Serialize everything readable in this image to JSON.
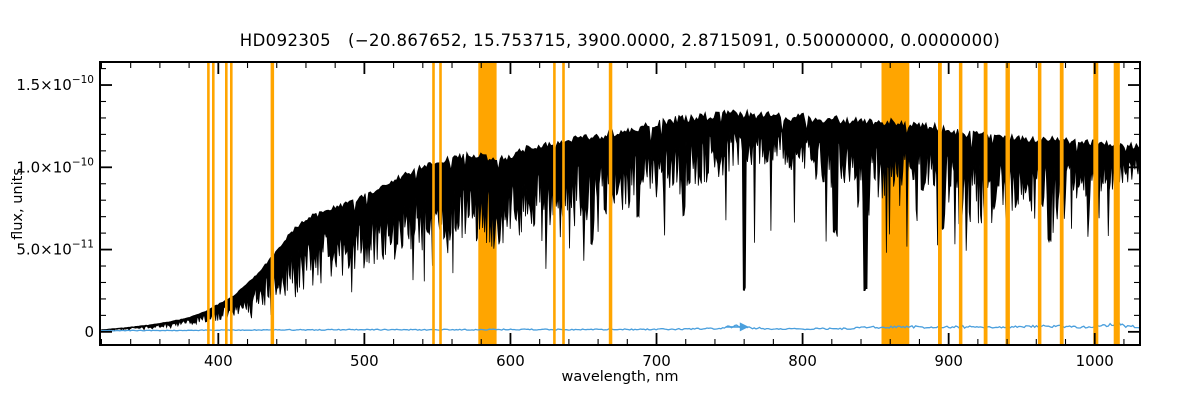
{
  "figure": {
    "window_background": "#FFFFFF"
  },
  "chart_data": {
    "type": "line",
    "title": "HD092305   (−20.867652, 15.753715, 3900.0000, 2.8715091, 0.50000000, 0.0000000)",
    "title_display": "HD092305   (−20.867652, 15.753715, 3900.0000, 2.8715091, 0.50000000, 0.0000000)",
    "object_name": "HD092305",
    "title_parameters": [
      -20.867652,
      15.753715,
      3900.0,
      2.8715091,
      0.5,
      0.0
    ],
    "xlabel": "wavelength, nm",
    "ylabel": "flux, units",
    "xlim": [
      319,
      1031
    ],
    "ylim_e11": [
      -0.8,
      16.4
    ],
    "flux_unit": 1e-11,
    "x_major_ticks": [
      400,
      500,
      600,
      700,
      800,
      900,
      1000
    ],
    "x_minor_step": 20,
    "y_major_ticks_e11": [
      0,
      5,
      10,
      15
    ],
    "y_minor_step_e11": 1,
    "y_tick_labels": [
      {
        "text": "0",
        "exp": ""
      },
      {
        "text": "5.0×10",
        "exp": "−11"
      },
      {
        "text": "1.0×10",
        "exp": "−10"
      },
      {
        "text": "1.5×10",
        "exp": "−10"
      }
    ],
    "grid": false,
    "legend": "none",
    "colors": {
      "spectrum": "#000000",
      "masked_band": "#FFA500",
      "error_curve": "#4A9FDD",
      "axes": "#000000",
      "background": "#FFFFFF"
    },
    "seed": 7,
    "series": [
      {
        "name": "stellar-spectrum",
        "color": "#000000",
        "continuum_e11": [
          [
            319,
            0.12
          ],
          [
            335,
            0.25
          ],
          [
            350,
            0.4
          ],
          [
            365,
            0.6
          ],
          [
            380,
            0.9
          ],
          [
            392,
            1.3
          ],
          [
            400,
            1.7
          ],
          [
            410,
            2.2
          ],
          [
            420,
            3.0
          ],
          [
            430,
            3.9
          ],
          [
            440,
            5.0
          ],
          [
            450,
            6.2
          ],
          [
            460,
            7.0
          ],
          [
            470,
            7.4
          ],
          [
            480,
            7.7
          ],
          [
            490,
            8.0
          ],
          [
            500,
            8.4
          ],
          [
            510,
            8.9
          ],
          [
            520,
            9.4
          ],
          [
            530,
            9.8
          ],
          [
            540,
            10.2
          ],
          [
            550,
            10.5
          ],
          [
            560,
            10.8
          ],
          [
            570,
            10.9
          ],
          [
            580,
            10.9
          ],
          [
            590,
            10.6
          ],
          [
            600,
            10.9
          ],
          [
            610,
            11.3
          ],
          [
            620,
            11.6
          ],
          [
            630,
            11.7
          ],
          [
            640,
            11.9
          ],
          [
            650,
            12.0
          ],
          [
            660,
            12.1
          ],
          [
            670,
            12.3
          ],
          [
            680,
            12.5
          ],
          [
            690,
            12.7
          ],
          [
            700,
            12.9
          ],
          [
            710,
            13.1
          ],
          [
            720,
            13.2
          ],
          [
            730,
            13.3
          ],
          [
            740,
            13.4
          ],
          [
            750,
            13.6
          ],
          [
            760,
            13.5
          ],
          [
            770,
            13.4
          ],
          [
            780,
            13.4
          ],
          [
            790,
            13.3
          ],
          [
            800,
            13.3
          ],
          [
            810,
            13.2
          ],
          [
            820,
            13.2
          ],
          [
            830,
            13.1
          ],
          [
            840,
            13.0
          ],
          [
            850,
            13.0
          ],
          [
            860,
            13.0
          ],
          [
            870,
            12.9
          ],
          [
            880,
            12.8
          ],
          [
            890,
            12.7
          ],
          [
            900,
            12.5
          ],
          [
            910,
            12.3
          ],
          [
            920,
            12.2
          ],
          [
            930,
            12.1
          ],
          [
            940,
            12.0
          ],
          [
            950,
            12.0
          ],
          [
            960,
            11.9
          ],
          [
            970,
            11.9
          ],
          [
            980,
            11.8
          ],
          [
            990,
            11.8
          ],
          [
            1000,
            11.7
          ],
          [
            1010,
            11.6
          ],
          [
            1020,
            11.5
          ],
          [
            1031,
            11.5
          ]
        ],
        "absorption_depth_fraction": [
          [
            319,
            0.45
          ],
          [
            350,
            0.5
          ],
          [
            380,
            0.55
          ],
          [
            400,
            0.6
          ],
          [
            420,
            0.62
          ],
          [
            440,
            0.62
          ],
          [
            460,
            0.62
          ],
          [
            480,
            0.58
          ],
          [
            500,
            0.55
          ],
          [
            520,
            0.55
          ],
          [
            540,
            0.52
          ],
          [
            560,
            0.5
          ],
          [
            580,
            0.52
          ],
          [
            595,
            0.56
          ],
          [
            610,
            0.5
          ],
          [
            630,
            0.47
          ],
          [
            650,
            0.46
          ],
          [
            670,
            0.44
          ],
          [
            690,
            0.4
          ],
          [
            710,
            0.36
          ],
          [
            730,
            0.33
          ],
          [
            750,
            0.3
          ],
          [
            770,
            0.24
          ],
          [
            790,
            0.26
          ],
          [
            810,
            0.32
          ],
          [
            830,
            0.4
          ],
          [
            845,
            0.46
          ],
          [
            860,
            0.36
          ],
          [
            875,
            0.3
          ],
          [
            890,
            0.36
          ],
          [
            905,
            0.42
          ],
          [
            920,
            0.46
          ],
          [
            935,
            0.46
          ],
          [
            950,
            0.4
          ],
          [
            965,
            0.45
          ],
          [
            980,
            0.42
          ],
          [
            995,
            0.32
          ],
          [
            1010,
            0.26
          ],
          [
            1031,
            0.2
          ]
        ],
        "deep_lines_e11": [
          {
            "x": 656,
            "bottom": 5.5
          },
          {
            "x": 687,
            "bottom": 7.2
          },
          {
            "x": 719,
            "bottom": 7.4
          },
          {
            "x": 760,
            "bottom": 2.6
          },
          {
            "x": 822,
            "bottom": 6.2
          },
          {
            "x": 843,
            "bottom": 2.6
          },
          {
            "x": 896,
            "bottom": 6.2
          },
          {
            "x": 940,
            "bottom": 6.4
          },
          {
            "x": 969,
            "bottom": 5.6
          }
        ]
      },
      {
        "name": "error-spectrum",
        "color": "#4A9FDD",
        "points_e11": [
          [
            319,
            0.07
          ],
          [
            360,
            0.08
          ],
          [
            400,
            0.1
          ],
          [
            450,
            0.12
          ],
          [
            500,
            0.13
          ],
          [
            550,
            0.13
          ],
          [
            600,
            0.14
          ],
          [
            650,
            0.14
          ],
          [
            700,
            0.15
          ],
          [
            740,
            0.2
          ],
          [
            755,
            0.35
          ],
          [
            765,
            0.25
          ],
          [
            780,
            0.18
          ],
          [
            800,
            0.18
          ],
          [
            830,
            0.2
          ],
          [
            850,
            0.28
          ],
          [
            870,
            0.3
          ],
          [
            890,
            0.28
          ],
          [
            910,
            0.3
          ],
          [
            930,
            0.26
          ],
          [
            950,
            0.3
          ],
          [
            970,
            0.34
          ],
          [
            990,
            0.3
          ],
          [
            1005,
            0.35
          ],
          [
            1015,
            0.5
          ],
          [
            1022,
            0.35
          ],
          [
            1031,
            0.3
          ]
        ],
        "arrow_marker": {
          "x_nm": 757,
          "y_e11": 0.3,
          "direction": "right"
        }
      }
    ],
    "masked_bands_nm": [
      {
        "center": 393.2,
        "width": 1.8,
        "layer": "front"
      },
      {
        "center": 396.6,
        "width": 1.8,
        "layer": "front"
      },
      {
        "center": 405.5,
        "width": 1.8,
        "layer": "front"
      },
      {
        "center": 408.9,
        "width": 1.8,
        "layer": "front"
      },
      {
        "center": 437.0,
        "width": 2.4,
        "layer": "front"
      },
      {
        "center": 547.3,
        "width": 1.8,
        "layer": "front"
      },
      {
        "center": 552.1,
        "width": 1.8,
        "layer": "front"
      },
      {
        "x0": 578,
        "x1": 590.5,
        "layer": "behind"
      },
      {
        "center": 630.1,
        "width": 1.8,
        "layer": "front"
      },
      {
        "center": 636.3,
        "width": 1.8,
        "layer": "front"
      },
      {
        "center": 668.5,
        "width": 2.4,
        "layer": "front"
      },
      {
        "x0": 854,
        "x1": 873,
        "layer": "behind"
      },
      {
        "center": 894.0,
        "width": 2.6,
        "layer": "front"
      },
      {
        "center": 908.2,
        "width": 2.4,
        "layer": "front"
      },
      {
        "center": 925.3,
        "width": 2.6,
        "layer": "front"
      },
      {
        "center": 940.4,
        "width": 3.0,
        "layer": "front"
      },
      {
        "center": 962.3,
        "width": 2.4,
        "layer": "front"
      },
      {
        "center": 977.4,
        "width": 2.6,
        "layer": "front"
      },
      {
        "center": 1000.7,
        "width": 3.4,
        "layer": "front"
      },
      {
        "center": 1015.1,
        "width": 4.2,
        "layer": "front"
      }
    ]
  }
}
